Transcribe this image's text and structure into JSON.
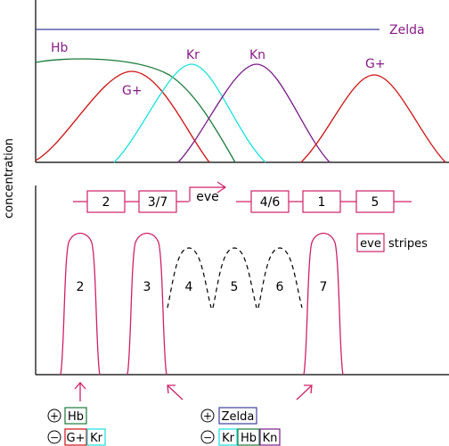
{
  "colors": {
    "zelda": "#3f3fa0",
    "hb": "#1a7a3a",
    "gap": "#d01010",
    "kr": "#18e0e0",
    "kn": "#7a1a8a",
    "magenta": "#d0206a",
    "label_purple": "#8a1a8a",
    "axis": "#000000",
    "dashed": "#000000"
  },
  "y_axis_label": "concentration",
  "top_panel": {
    "labels": {
      "zelda": "Zelda",
      "hb": "Hb",
      "giant_left": "G+",
      "kr": "Kr",
      "kn": "Kn",
      "giant_right": "G+"
    }
  },
  "gene": {
    "left_modules": [
      "2",
      "3/7"
    ],
    "promoter_label": "eve",
    "right_modules": [
      "4/6",
      "1",
      "5"
    ]
  },
  "legend": {
    "box_label": "eve",
    "text": "stripes"
  },
  "stripes": {
    "solid": [
      "2",
      "3",
      "7"
    ],
    "dashed": [
      "4",
      "5",
      "6"
    ]
  },
  "regulation": {
    "left": {
      "plus": "+",
      "minus": "−",
      "activators": [
        {
          "label": "Hb",
          "color": "#1a7a3a"
        }
      ],
      "repressors": [
        {
          "label": "G+",
          "color": "#d01010"
        },
        {
          "label": "Kr",
          "color": "#18e0e0"
        }
      ]
    },
    "right": {
      "plus": "+",
      "minus": "−",
      "activators": [
        {
          "label": "Zelda",
          "color": "#3f3fa0"
        }
      ],
      "repressors": [
        {
          "label": "Kr",
          "color": "#18e0e0"
        },
        {
          "label": "Hb",
          "color": "#1a7a3a"
        },
        {
          "label": "Kn",
          "color": "#7a1a8a"
        }
      ]
    }
  }
}
